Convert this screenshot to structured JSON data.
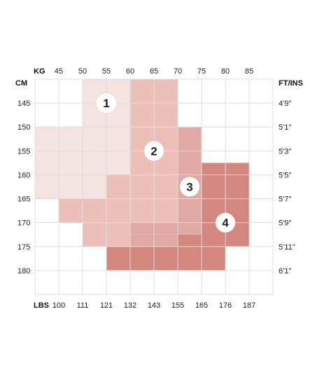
{
  "chart_data": {
    "type": "heatmap",
    "kg_header": "KG",
    "cm_header": "CM",
    "lbs_header": "LBS",
    "ftins_header": "FT/INS",
    "kg_ticks": [
      "45",
      "50",
      "55",
      "60",
      "65",
      "70",
      "75",
      "80",
      "85"
    ],
    "lbs_ticks": [
      "100",
      "111",
      "121",
      "132",
      "143",
      "155",
      "165",
      "176",
      "187"
    ],
    "cm_ticks": [
      "145",
      "150",
      "155",
      "160",
      "165",
      "170",
      "175",
      "180"
    ],
    "ftins_ticks": [
      "4'9''",
      "5'1''",
      "5'3''",
      "5'5''",
      "5'7''",
      "5'9''",
      "5'11''",
      "6'1''"
    ],
    "kg_range": [
      40,
      90
    ],
    "cm_range": [
      140,
      185
    ],
    "grid": true,
    "colors": {
      "size_1": "#f3e4e2",
      "size_2": "#ecc0b8",
      "size_3": "#e0a9a5",
      "size_4": "#d4877f",
      "grid_line": "#dddddd"
    },
    "sizes": [
      {
        "label": "1",
        "color": "#f3e4e2",
        "rects": [
          {
            "kg": [
              50,
              60
            ],
            "cm": [
              140,
              150
            ]
          },
          {
            "kg": [
              40,
              60
            ],
            "cm": [
              150,
              160
            ]
          },
          {
            "kg": [
              40,
              55
            ],
            "cm": [
              160,
              165
            ]
          }
        ],
        "badge_kg": 55,
        "badge_cm": 145
      },
      {
        "label": "2",
        "color": "#ecc0b8",
        "rects": [
          {
            "kg": [
              60,
              70
            ],
            "cm": [
              140,
              160
            ]
          },
          {
            "kg": [
              55,
              70
            ],
            "cm": [
              160,
              165
            ]
          },
          {
            "kg": [
              45,
              70
            ],
            "cm": [
              165,
              170
            ]
          },
          {
            "kg": [
              50,
              60
            ],
            "cm": [
              170,
              175
            ]
          }
        ],
        "badge_kg": 65,
        "badge_cm": 155
      },
      {
        "label": "3",
        "color": "#e0a9a5",
        "rects": [
          {
            "kg": [
              70,
              75
            ],
            "cm": [
              150,
              170
            ]
          },
          {
            "kg": [
              60,
              75
            ],
            "cm": [
              170,
              172.5
            ]
          },
          {
            "kg": [
              60,
              70
            ],
            "cm": [
              172.5,
              175
            ]
          }
        ],
        "badge_kg": 72.5,
        "badge_cm": 162.5
      },
      {
        "label": "4",
        "color": "#d4877f",
        "rects": [
          {
            "kg": [
              75,
              85
            ],
            "cm": [
              157.5,
              175
            ]
          },
          {
            "kg": [
              70,
              75
            ],
            "cm": [
              172.5,
              175
            ]
          },
          {
            "kg": [
              55,
              80
            ],
            "cm": [
              175,
              180
            ]
          }
        ],
        "badge_kg": 80,
        "badge_cm": 170
      }
    ]
  }
}
